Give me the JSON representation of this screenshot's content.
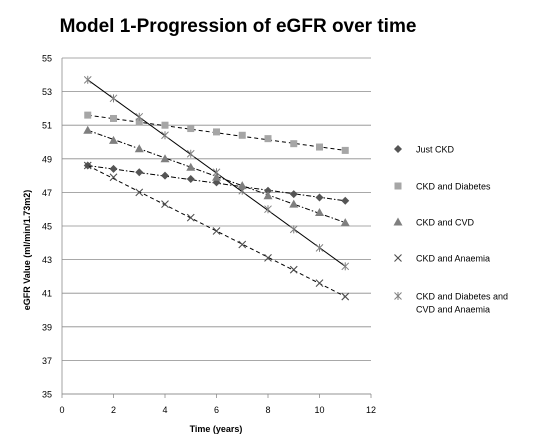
{
  "chart_data": {
    "type": "line",
    "title": "Model 1-Progression of eGFR over time",
    "xlabel": "Time (years)",
    "ylabel": "eGFR Value (ml/min/1.73m2)",
    "xlim": [
      0,
      12
    ],
    "ylim": [
      35,
      55
    ],
    "xticks": [
      0,
      2,
      4,
      6,
      8,
      10,
      12
    ],
    "yticks": [
      35,
      37,
      39,
      41,
      43,
      45,
      47,
      49,
      51,
      53,
      55
    ],
    "grid": "horizontal",
    "legend_position": "right",
    "x": [
      1,
      2,
      3,
      4,
      5,
      6,
      7,
      8,
      9,
      10,
      11
    ],
    "series": [
      {
        "name": "Just CKD",
        "marker": "diamond",
        "color": "#555555",
        "trendline": "dash-dot",
        "values": [
          48.6,
          48.4,
          48.2,
          48.0,
          47.8,
          47.6,
          47.3,
          47.1,
          46.9,
          46.7,
          46.5
        ]
      },
      {
        "name": "CKD and Diabetes",
        "marker": "square",
        "color": "#a6a6a6",
        "trendline": "dashed",
        "values": [
          51.6,
          51.4,
          51.2,
          51.0,
          50.8,
          50.6,
          50.4,
          50.2,
          49.9,
          49.7,
          49.5
        ]
      },
      {
        "name": "CKD and CVD",
        "marker": "triangle",
        "color": "#7f7f7f",
        "trendline": "dash-dot",
        "values": [
          50.7,
          50.1,
          49.6,
          49.0,
          48.5,
          47.9,
          47.4,
          46.8,
          46.3,
          45.8,
          45.2
        ]
      },
      {
        "name": "CKD and Anaemia",
        "marker": "x",
        "color": "#4d4d4d",
        "trendline": "dashed",
        "values": [
          48.6,
          47.9,
          47.0,
          46.3,
          45.5,
          44.7,
          43.9,
          43.1,
          42.4,
          41.6,
          40.8
        ]
      },
      {
        "name": "CKD and Diabetes and CVD and Anaemia",
        "marker": "star",
        "color": "#808080",
        "trendline": "solid",
        "values": [
          53.7,
          52.6,
          51.5,
          50.4,
          49.3,
          48.2,
          47.1,
          46.0,
          44.8,
          43.7,
          42.6
        ]
      }
    ],
    "legend_labels": [
      [
        "Just CKD"
      ],
      [
        "CKD and Diabetes"
      ],
      [
        "CKD and CVD"
      ],
      [
        "CKD and Anaemia"
      ],
      [
        "CKD and Diabetes and",
        "CVD and Anaemia"
      ]
    ]
  }
}
